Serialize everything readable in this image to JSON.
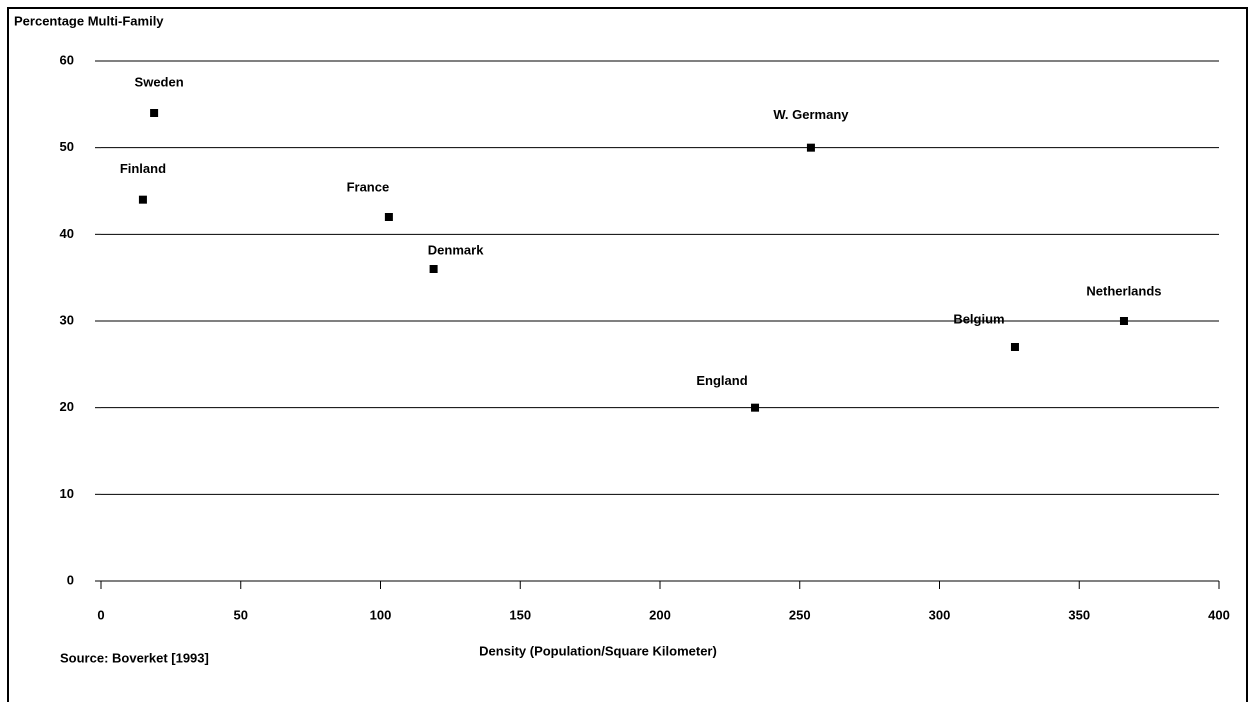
{
  "chart_data": {
    "type": "scatter",
    "ylabel": "Percentage Multi-Family",
    "xlabel": "Density (Population/Square Kilometer)",
    "source": "Source: Boverket [1993]",
    "series": [
      {
        "names": [
          "Sweden",
          "Finland",
          "France",
          "Denmark",
          "W. Germany",
          "England",
          "Belgium",
          "Netherlands"
        ],
        "color": "#000000",
        "x": [
          19,
          15,
          103,
          119,
          254,
          234,
          327,
          366
        ],
        "values": [
          54,
          44,
          42,
          36,
          50,
          20,
          27,
          30
        ]
      }
    ],
    "xlim": [
      0,
      400
    ],
    "xticks": [
      0,
      50,
      100,
      150,
      200,
      250,
      300,
      350,
      400
    ],
    "ylim": [
      0,
      60
    ],
    "yticks": [
      0,
      10,
      20,
      30,
      40,
      50,
      60
    ],
    "grid": true
  }
}
